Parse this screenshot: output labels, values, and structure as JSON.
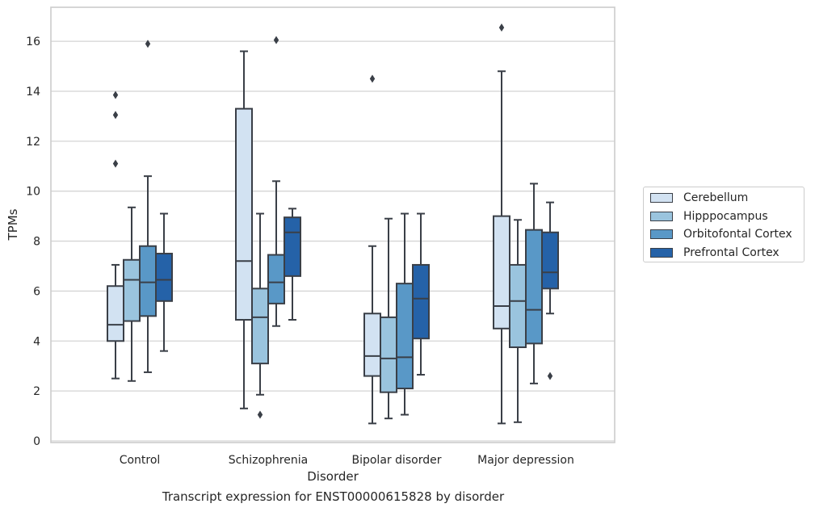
{
  "chart_data": {
    "type": "box",
    "title": "Transcript expression for ENST00000615828 by disorder",
    "xlabel": "Disorder",
    "ylabel": "TPMs",
    "ylim": [
      -0.1,
      17.3
    ],
    "yticks": [
      0,
      2,
      4,
      6,
      8,
      10,
      12,
      14,
      16
    ],
    "categories": [
      "Control",
      "Schizophrenia",
      "Bipolar disorder",
      "Major depression"
    ],
    "grid": "horizontal",
    "legend_position": "right",
    "series": [
      {
        "name": "Cerebellum",
        "color": "#d2e2f2",
        "boxes": [
          {
            "whisker_low": 2.5,
            "q1": 4.0,
            "median": 4.65,
            "q3": 6.2,
            "whisker_high": 7.05,
            "outliers": [
              11.1,
              13.05,
              13.85
            ]
          },
          {
            "whisker_low": 1.3,
            "q1": 4.85,
            "median": 7.2,
            "q3": 13.3,
            "whisker_high": 15.6,
            "outliers": []
          },
          {
            "whisker_low": 0.7,
            "q1": 2.6,
            "median": 3.4,
            "q3": 5.1,
            "whisker_high": 7.8,
            "outliers": [
              14.5
            ]
          },
          {
            "whisker_low": 0.7,
            "q1": 4.5,
            "median": 5.4,
            "q3": 9.0,
            "whisker_high": 14.8,
            "outliers": [
              16.55
            ]
          }
        ]
      },
      {
        "name": "Hipppocampus",
        "color": "#9ac4de",
        "boxes": [
          {
            "whisker_low": 2.4,
            "q1": 4.8,
            "median": 6.45,
            "q3": 7.25,
            "whisker_high": 9.35,
            "outliers": []
          },
          {
            "whisker_low": 1.85,
            "q1": 3.1,
            "median": 4.95,
            "q3": 6.1,
            "whisker_high": 9.1,
            "outliers": [
              1.05
            ]
          },
          {
            "whisker_low": 0.9,
            "q1": 1.95,
            "median": 3.3,
            "q3": 4.95,
            "whisker_high": 8.9,
            "outliers": []
          },
          {
            "whisker_low": 0.75,
            "q1": 3.75,
            "median": 5.6,
            "q3": 7.05,
            "whisker_high": 8.85,
            "outliers": []
          }
        ]
      },
      {
        "name": "Orbitofontal Cortex",
        "color": "#5998c7",
        "boxes": [
          {
            "whisker_low": 2.75,
            "q1": 5.0,
            "median": 6.35,
            "q3": 7.8,
            "whisker_high": 10.6,
            "outliers": [
              15.9
            ]
          },
          {
            "whisker_low": 4.6,
            "q1": 5.5,
            "median": 6.35,
            "q3": 7.45,
            "whisker_high": 10.4,
            "outliers": [
              16.05
            ]
          },
          {
            "whisker_low": 1.05,
            "q1": 2.1,
            "median": 3.35,
            "q3": 6.3,
            "whisker_high": 9.1,
            "outliers": []
          },
          {
            "whisker_low": 2.3,
            "q1": 3.9,
            "median": 5.25,
            "q3": 8.45,
            "whisker_high": 10.3,
            "outliers": []
          }
        ]
      },
      {
        "name": "Prefrontal Cortex",
        "color": "#2562a8",
        "boxes": [
          {
            "whisker_low": 3.6,
            "q1": 5.6,
            "median": 6.45,
            "q3": 7.5,
            "whisker_high": 9.1,
            "outliers": []
          },
          {
            "whisker_low": 4.85,
            "q1": 6.6,
            "median": 8.35,
            "q3": 8.95,
            "whisker_high": 9.3,
            "outliers": []
          },
          {
            "whisker_low": 2.65,
            "q1": 4.1,
            "median": 5.7,
            "q3": 7.05,
            "whisker_high": 9.1,
            "outliers": []
          },
          {
            "whisker_low": 5.1,
            "q1": 6.1,
            "median": 6.75,
            "q3": 8.35,
            "whisker_high": 9.55,
            "outliers": [
              2.6
            ]
          }
        ]
      }
    ]
  }
}
